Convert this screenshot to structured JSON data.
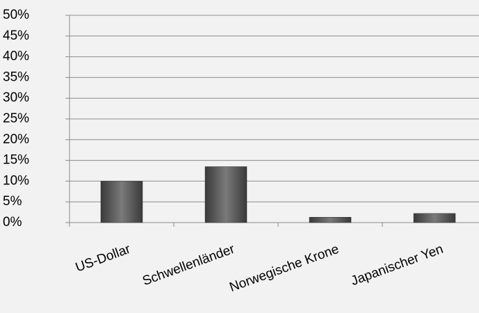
{
  "chart_data": {
    "type": "bar",
    "categories": [
      "US-Dollar",
      "Schwellenländer",
      "Norwegische Krone",
      "Japanischer Yen"
    ],
    "values": [
      10,
      13.5,
      1.3,
      2.2
    ],
    "color": "#595959",
    "ylim": [
      0,
      50
    ],
    "yticks": [
      {
        "value": 0,
        "label": "0%"
      },
      {
        "value": 5,
        "label": "5%"
      },
      {
        "value": 10,
        "label": "10%"
      },
      {
        "value": 15,
        "label": "15%"
      },
      {
        "value": 20,
        "label": "20%"
      },
      {
        "value": 25,
        "label": "25%"
      },
      {
        "value": 30,
        "label": "30%"
      },
      {
        "value": 35,
        "label": "35%"
      },
      {
        "value": 40,
        "label": "40%"
      },
      {
        "value": 45,
        "label": "45%"
      },
      {
        "value": 50,
        "label": "50%"
      }
    ],
    "grid": true
  }
}
